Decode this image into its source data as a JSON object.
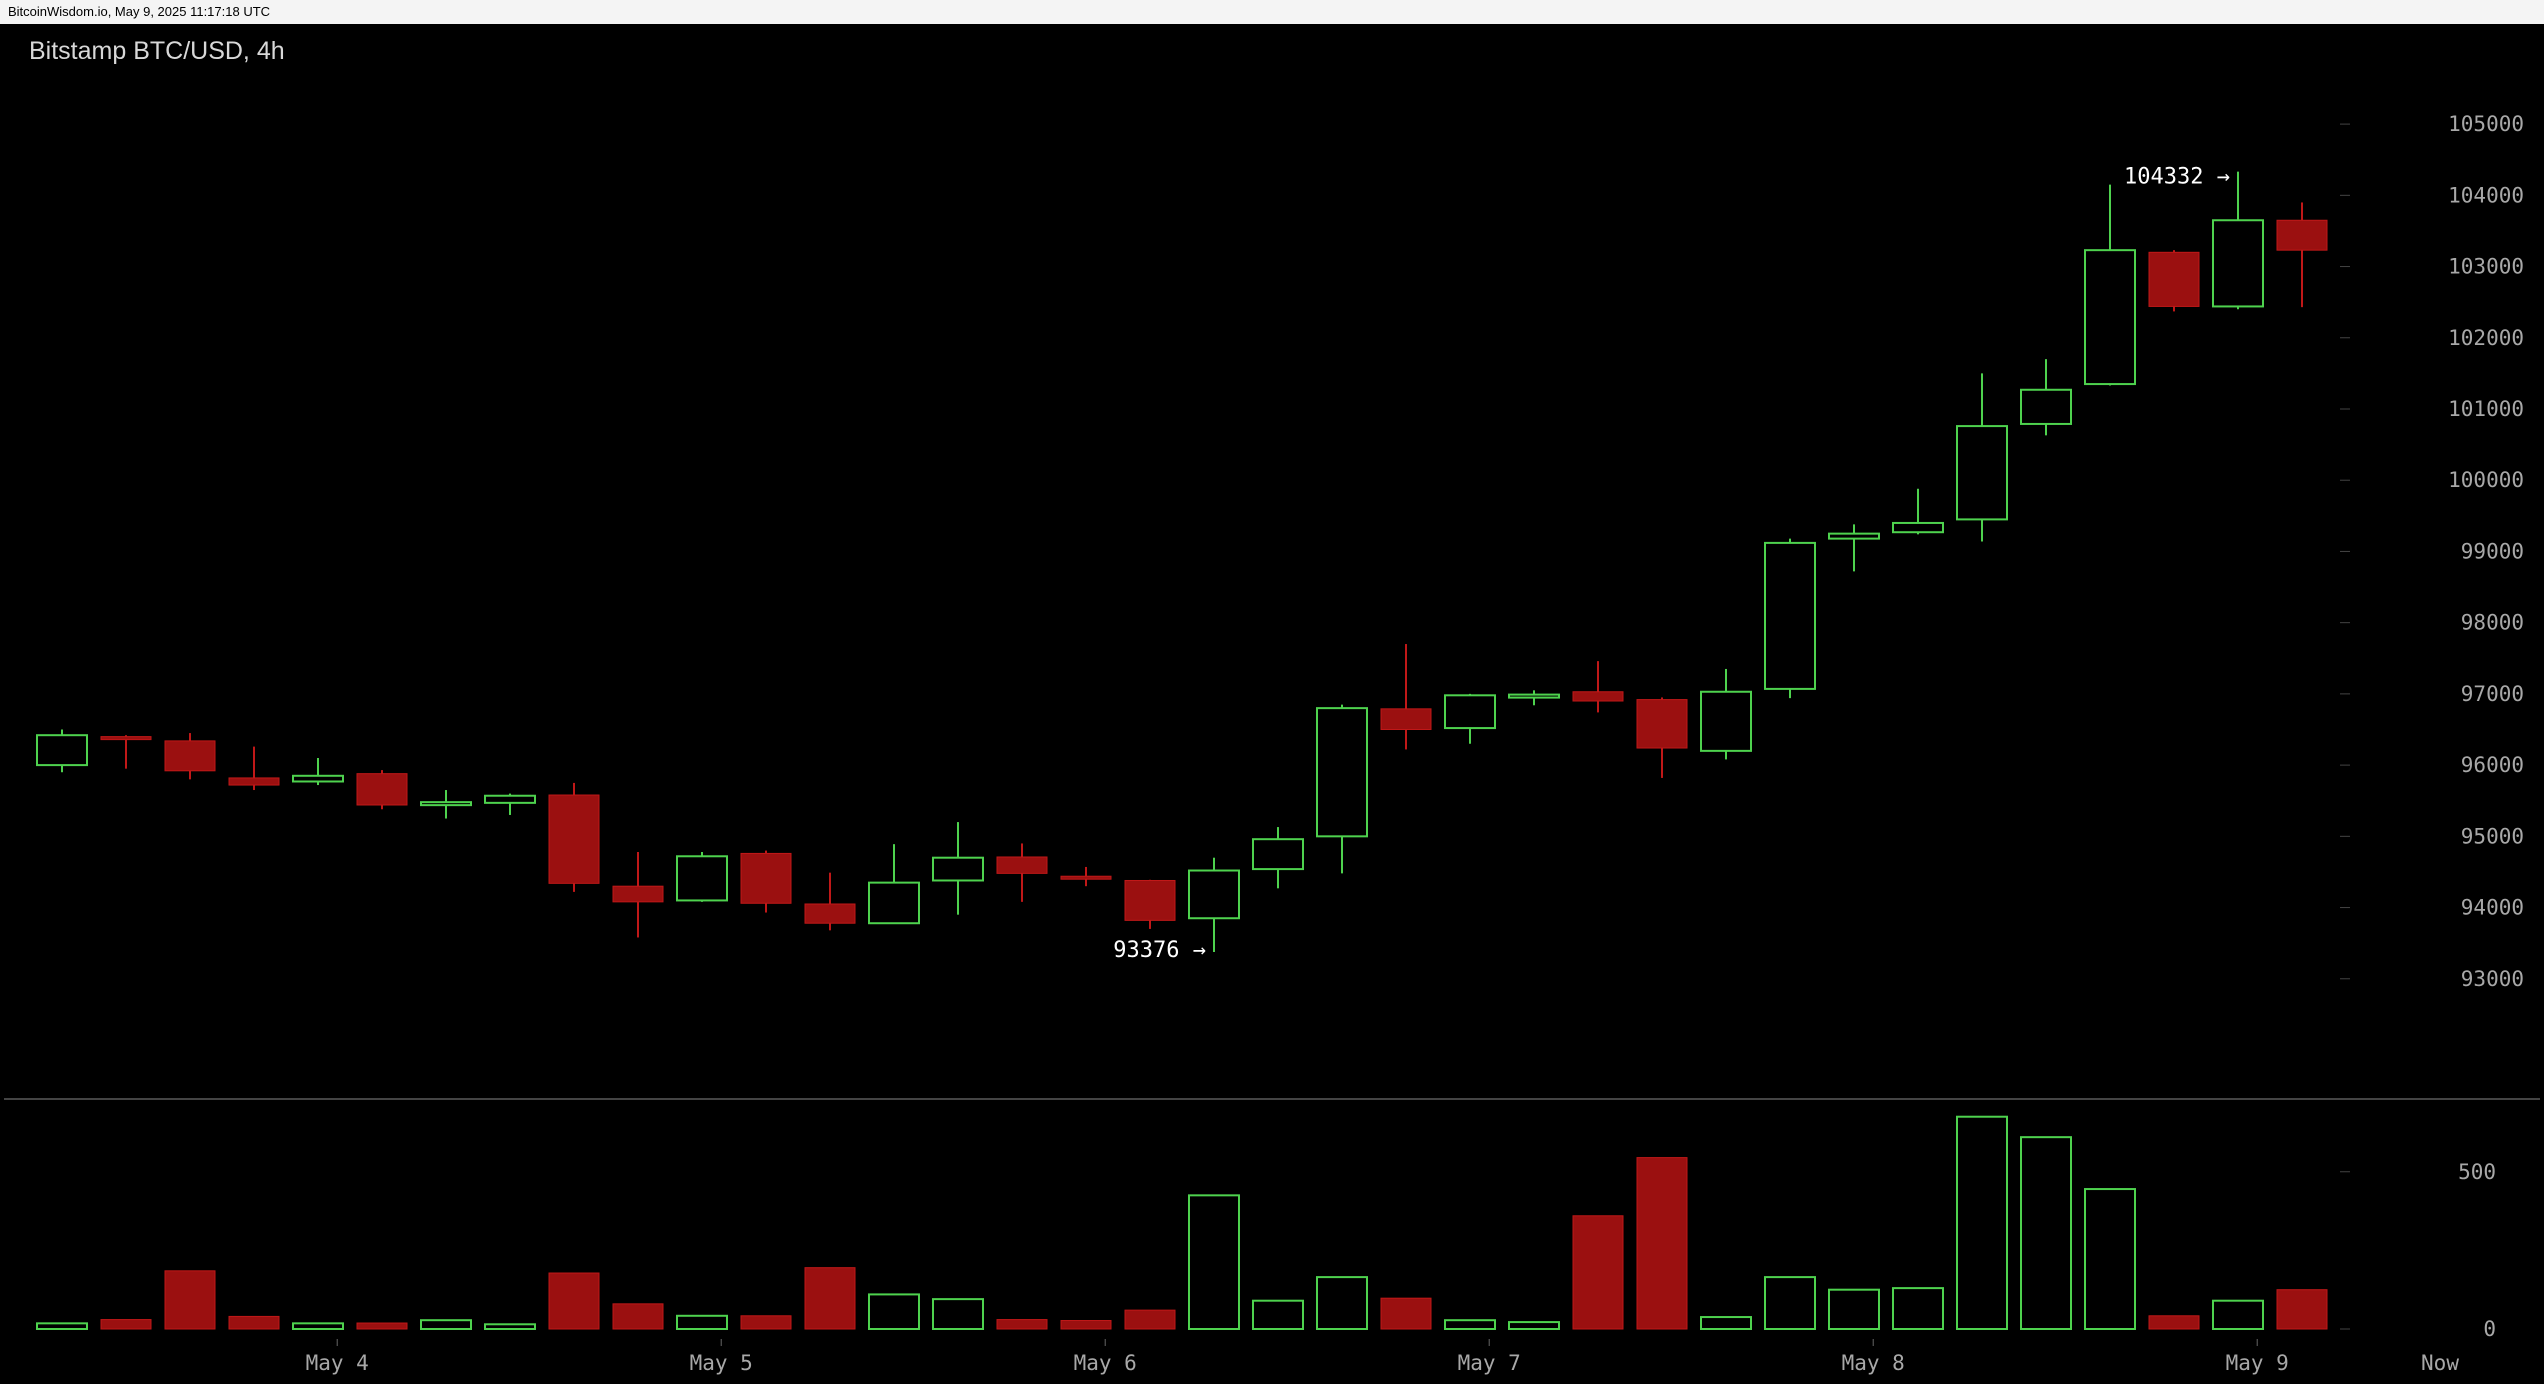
{
  "header": {
    "source_line": "BitcoinWisdom.io, May 9, 2025 11:17:18 UTC",
    "chart_title": "Bitstamp BTC/USD, 4h"
  },
  "colors": {
    "background": "#000000",
    "up": "#4ed24e",
    "down": "#9b1010",
    "grid_text": "#a8a8a8",
    "divider": "#5a5a5a"
  },
  "chart_data": {
    "type": "candlestick",
    "title": "Bitstamp BTC/USD, 4h",
    "interval": "4h",
    "price_axis": {
      "ticks": [
        93000,
        94000,
        95000,
        96000,
        97000,
        98000,
        99000,
        100000,
        101000,
        102000,
        103000,
        104000,
        105000
      ],
      "tick_labels": [
        "93000",
        "94000",
        "95000",
        "96000",
        "97000",
        "98000",
        "99000",
        "100000",
        "101000",
        "102000",
        "103000",
        "104000",
        "105000"
      ],
      "range": [
        92000,
        105900
      ]
    },
    "volume_axis": {
      "ticks": [
        0,
        500
      ],
      "tick_labels": [
        "0",
        "500"
      ],
      "range": [
        0,
        690
      ]
    },
    "x_labels": [
      "May 4",
      "May 5",
      "May 6",
      "May 7",
      "May 8",
      "May 9",
      "Now"
    ],
    "x_label_candle_index": [
      4.3,
      10.3,
      16.3,
      22.3,
      28.3,
      34.3
    ],
    "annotations": [
      {
        "text": "104332 →",
        "value": 104332
      },
      {
        "text": "93376 →",
        "value": 93376
      }
    ],
    "candles": [
      {
        "o": 96000,
        "h": 96500,
        "l": 95900,
        "c": 96420
      },
      {
        "o": 96400,
        "h": 96420,
        "l": 95950,
        "c": 96360
      },
      {
        "o": 96340,
        "h": 96450,
        "l": 95800,
        "c": 95920
      },
      {
        "o": 95820,
        "h": 96260,
        "l": 95650,
        "c": 95720
      },
      {
        "o": 95770,
        "h": 96100,
        "l": 95720,
        "c": 95850
      },
      {
        "o": 95880,
        "h": 95930,
        "l": 95380,
        "c": 95440
      },
      {
        "o": 95460,
        "h": 95650,
        "l": 95250,
        "c": 95480
      },
      {
        "o": 95470,
        "h": 95600,
        "l": 95300,
        "c": 95570
      },
      {
        "o": 95580,
        "h": 95750,
        "l": 94220,
        "c": 94340
      },
      {
        "o": 94300,
        "h": 94780,
        "l": 93580,
        "c": 94080
      },
      {
        "o": 94100,
        "h": 94780,
        "l": 94080,
        "c": 94720
      },
      {
        "o": 94760,
        "h": 94800,
        "l": 93930,
        "c": 94060
      },
      {
        "o": 94050,
        "h": 94490,
        "l": 93680,
        "c": 93780
      },
      {
        "o": 93780,
        "h": 94890,
        "l": 93770,
        "c": 94350
      },
      {
        "o": 94380,
        "h": 95200,
        "l": 93900,
        "c": 94700
      },
      {
        "o": 94710,
        "h": 94900,
        "l": 94080,
        "c": 94480
      },
      {
        "o": 94440,
        "h": 94570,
        "l": 94300,
        "c": 94400
      },
      {
        "o": 94380,
        "h": 94390,
        "l": 93700,
        "c": 93820
      },
      {
        "o": 93850,
        "h": 94700,
        "l": 93376,
        "c": 94520
      },
      {
        "o": 94540,
        "h": 95130,
        "l": 94270,
        "c": 94960
      },
      {
        "o": 95000,
        "h": 96850,
        "l": 94480,
        "c": 96800
      },
      {
        "o": 96790,
        "h": 97700,
        "l": 96220,
        "c": 96500
      },
      {
        "o": 96520,
        "h": 97000,
        "l": 96300,
        "c": 96980
      },
      {
        "o": 96980,
        "h": 97050,
        "l": 96840,
        "c": 96990
      },
      {
        "o": 97030,
        "h": 97460,
        "l": 96740,
        "c": 96900
      },
      {
        "o": 96920,
        "h": 96950,
        "l": 95820,
        "c": 96240
      },
      {
        "o": 96200,
        "h": 97350,
        "l": 96080,
        "c": 97030
      },
      {
        "o": 97070,
        "h": 99180,
        "l": 96940,
        "c": 99120
      },
      {
        "o": 99180,
        "h": 99380,
        "l": 98720,
        "c": 99250
      },
      {
        "o": 99270,
        "h": 99880,
        "l": 99240,
        "c": 99400
      },
      {
        "o": 99450,
        "h": 101500,
        "l": 99140,
        "c": 100760
      },
      {
        "o": 100790,
        "h": 101700,
        "l": 100630,
        "c": 101270
      },
      {
        "o": 101350,
        "h": 104150,
        "l": 101330,
        "c": 103230
      },
      {
        "o": 103200,
        "h": 103230,
        "l": 102370,
        "c": 102440
      },
      {
        "o": 102440,
        "h": 104332,
        "l": 102400,
        "c": 103650
      },
      {
        "o": 103650,
        "h": 103900,
        "l": 102430,
        "c": 103230
      }
    ],
    "volumes": [
      18,
      30,
      185,
      40,
      18,
      19,
      28,
      15,
      178,
      80,
      42,
      42,
      195,
      110,
      95,
      30,
      27,
      60,
      425,
      90,
      165,
      98,
      28,
      22,
      360,
      545,
      38,
      165,
      125,
      130,
      675,
      610,
      445,
      42,
      90,
      125
    ]
  }
}
